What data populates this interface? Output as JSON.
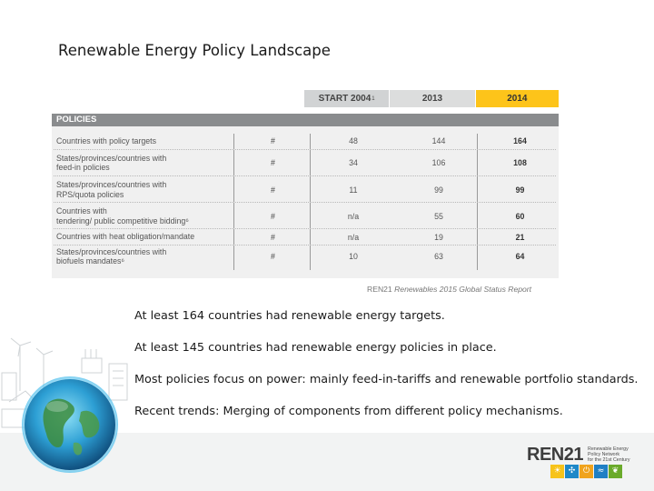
{
  "slide": {
    "title": "Renewable Energy Policy Landscape"
  },
  "table": {
    "year_headers": {
      "start": "START 2004",
      "start_sup": "1",
      "y2013": "2013",
      "y2014": "2014"
    },
    "section_header": "POLICIES",
    "rows": [
      {
        "label_lines": [
          "Countries with policy targets"
        ],
        "unit": "#",
        "start": "48",
        "y2013": "144",
        "y2014": "164"
      },
      {
        "label_lines": [
          "States/provinces/countries with",
          "feed-in policies"
        ],
        "unit": "#",
        "start": "34",
        "y2013": "106",
        "y2014": "108"
      },
      {
        "label_lines": [
          "States/provinces/countries with",
          "RPS/quota policies"
        ],
        "unit": "#",
        "start": "11",
        "y2013": "99",
        "y2014": "99"
      },
      {
        "label_lines": [
          "Countries with",
          "tendering/ public competitive bidding⁶"
        ],
        "unit": "#",
        "start": "n/a",
        "y2013": "55",
        "y2014": "60"
      },
      {
        "label_lines": [
          "Countries with heat obligation/mandate"
        ],
        "unit": "#",
        "start": "n/a",
        "y2013": "19",
        "y2014": "21"
      },
      {
        "label_lines": [
          "States/provinces/countries with",
          "biofuels mandates⁶"
        ],
        "unit": "#",
        "start": "10",
        "y2013": "63",
        "y2014": "64"
      }
    ]
  },
  "source": {
    "prefix": "REN21 ",
    "italic": "Renewables 2015 Global Status Report"
  },
  "bullets": [
    "At least 164 countries had renewable energy targets.",
    "At least 145 countries had renewable energy policies in place.",
    "Most policies focus on power: mainly feed-in-tariffs and renewable portfolio standards.",
    "Recent trends: Merging of components from different policy mechanisms."
  ],
  "logo": {
    "name": "REN21",
    "tagline": [
      "Renewable Energy",
      "Policy Network",
      "for the 21st Century"
    ],
    "icons": [
      "sun-icon",
      "wind-icon",
      "power-icon",
      "water-icon",
      "biomass-icon"
    ]
  },
  "colors": {
    "highlight_2014": "#fdc41a",
    "table_bg": "#f0f0f0",
    "section_header": "#8a8c8e",
    "logo_icons": [
      "#f7c31a",
      "#1e88c8",
      "#f0a31d",
      "#1f7fc4",
      "#6aaa2a"
    ]
  }
}
